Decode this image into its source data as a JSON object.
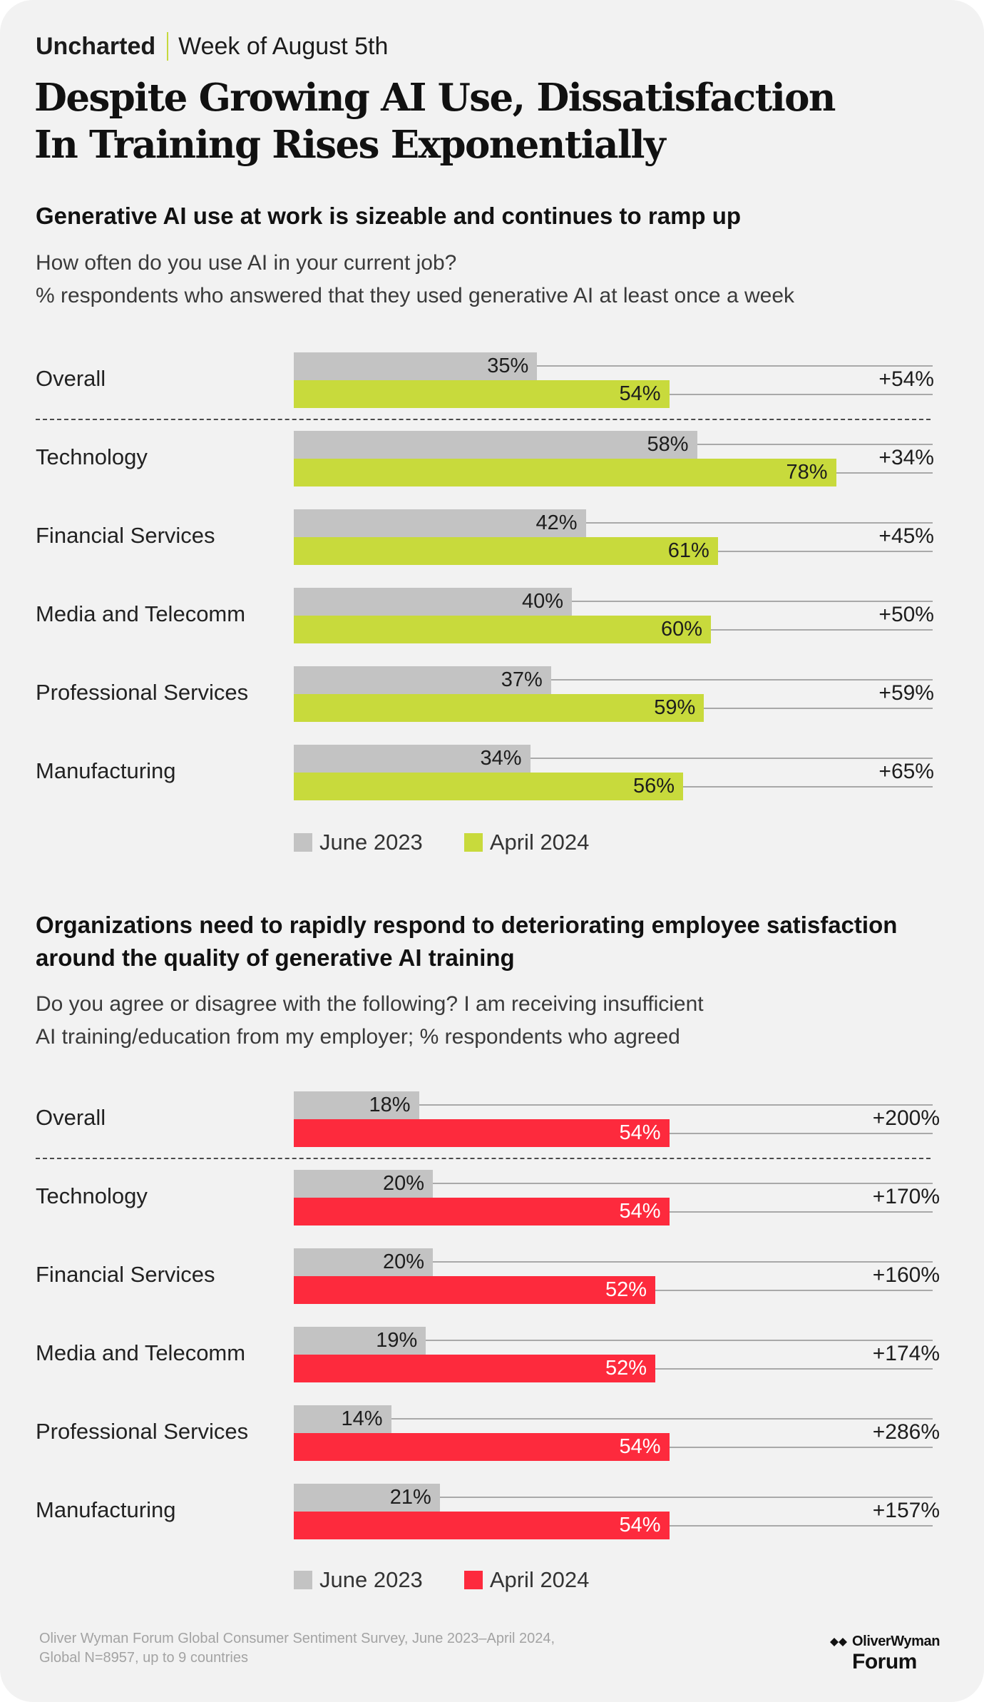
{
  "header": {
    "brand": "Uncharted",
    "week": "Week of August 5th"
  },
  "title": {
    "line1": "Despite Growing AI Use, Dissatisfaction",
    "line2": "In Training Rises Exponentially"
  },
  "section1": {
    "subtitle": "Generative AI use at work is sizeable and continues to ramp up",
    "question_line1": "How often do you use AI in your current job?",
    "question_line2": "% respondents who answered that they used generative AI at least once a week"
  },
  "section2": {
    "subtitle_line1": "Organizations need to rapidly respond to deteriorating employee satisfaction",
    "subtitle_line2": "around the quality of generative AI training",
    "question_line1": "Do you agree or disagree with the following? I am receiving insufficient",
    "question_line2": "AI training/education from my employer; % respondents who agreed"
  },
  "chart_data": [
    {
      "type": "bar",
      "orientation": "horizontal",
      "title": "Generative AI use at work is sizeable and continues to ramp up",
      "categories": [
        "Overall",
        "Technology",
        "Financial Services",
        "Media and Telecomm",
        "Professional Services",
        "Manufacturing"
      ],
      "series": [
        {
          "name": "June 2023",
          "color": "#c3c3c3",
          "values": [
            35,
            58,
            42,
            40,
            37,
            34
          ],
          "labels": [
            "35%",
            "58%",
            "42%",
            "40%",
            "37%",
            "34%"
          ]
        },
        {
          "name": "April 2024",
          "color": "#c8da3c",
          "values": [
            54,
            78,
            61,
            60,
            59,
            56
          ],
          "labels": [
            "54%",
            "78%",
            "61%",
            "60%",
            "59%",
            "56%"
          ]
        }
      ],
      "change_labels": [
        "+54%",
        "+34%",
        "+45%",
        "+50%",
        "+59%",
        "+65%"
      ],
      "unit": "%",
      "xlim": [
        0,
        100
      ],
      "legend": [
        "June 2023",
        "April 2024"
      ]
    },
    {
      "type": "bar",
      "orientation": "horizontal",
      "title": "Organizations need to rapidly respond to deteriorating employee satisfaction around the quality of generative AI training",
      "categories": [
        "Overall",
        "Technology",
        "Financial Services",
        "Media and Telecomm",
        "Professional Services",
        "Manufacturing"
      ],
      "series": [
        {
          "name": "June 2023",
          "color": "#c3c3c3",
          "values": [
            18,
            20,
            20,
            19,
            14,
            21
          ],
          "labels": [
            "18%",
            "20%",
            "20%",
            "19%",
            "14%",
            "21%"
          ]
        },
        {
          "name": "April 2024",
          "color": "#fd2a3d",
          "values": [
            54,
            54,
            52,
            52,
            54,
            54
          ],
          "labels": [
            "54%",
            "54%",
            "52%",
            "52%",
            "54%",
            "54%"
          ]
        }
      ],
      "change_labels": [
        "+200%",
        "+170%",
        "+160%",
        "+174%",
        "+286%",
        "+157%"
      ],
      "unit": "%",
      "xlim": [
        0,
        100
      ],
      "legend": [
        "June 2023",
        "April 2024"
      ]
    }
  ],
  "footer": {
    "source_line1": "Oliver Wyman Forum Global Consumer Sentiment Survey, June 2023–April 2024,",
    "source_line2": "Global N=8957, up to 9 countries",
    "logo_top": "OliverWyman",
    "logo_bottom": "Forum"
  }
}
